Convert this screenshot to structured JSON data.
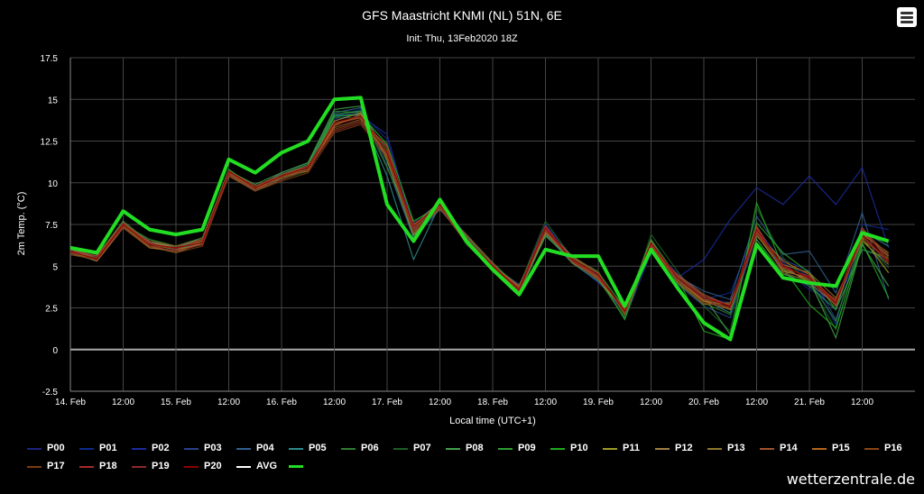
{
  "menu": {
    "icon": "hamburger-menu-icon"
  },
  "credit": "wetterzentrale.de",
  "colors": {
    "avg": "#22dd22",
    "background": "#000000",
    "grid": "#444444",
    "zero_line": "#aaaaaa"
  },
  "chart_data": {
    "type": "line",
    "title": "GFS Maastricht KNMI (NL) 51N, 6E",
    "subtitle": "Init: Thu, 13Feb2020 18Z",
    "xlabel": "Local time (UTC+1)",
    "ylabel": "2m Temp. (°C)",
    "ylim": [
      -2.5,
      17.5
    ],
    "yticks": [
      "17.5",
      "15",
      "12.5",
      "10",
      "7.5",
      "5",
      "2.5",
      "0",
      "-2.5"
    ],
    "xticks": [
      "14. Feb",
      "12:00",
      "15. Feb",
      "12:00",
      "16. Feb",
      "12:00",
      "17. Feb",
      "12:00",
      "18. Feb",
      "12:00",
      "19. Feb",
      "12:00",
      "20. Feb",
      "12:00",
      "21. Feb",
      "12:00"
    ],
    "x": [
      "14. Feb 00:00",
      "14. Feb 06:00",
      "14. Feb 12:00",
      "14. Feb 18:00",
      "15. Feb 00:00",
      "15. Feb 06:00",
      "15. Feb 12:00",
      "15. Feb 18:00",
      "16. Feb 00:00",
      "16. Feb 06:00",
      "16. Feb 12:00",
      "16. Feb 18:00",
      "17. Feb 00:00",
      "17. Feb 06:00",
      "17. Feb 12:00",
      "17. Feb 18:00",
      "18. Feb 00:00",
      "18. Feb 06:00",
      "18. Feb 12:00",
      "18. Feb 18:00",
      "19. Feb 00:00",
      "19. Feb 06:00",
      "19. Feb 12:00",
      "19. Feb 18:00",
      "20. Feb 00:00",
      "20. Feb 06:00",
      "20. Feb 12:00",
      "20. Feb 18:00",
      "21. Feb 00:00",
      "21. Feb 06:00",
      "21. Feb 12:00",
      "21. Feb 18:00"
    ],
    "grid": true,
    "legend_position": "bottom",
    "avg": [
      6.1,
      5.8,
      8.3,
      7.2,
      6.9,
      7.2,
      11.4,
      10.6,
      11.8,
      12.5,
      15.0,
      15.1,
      8.7,
      6.5,
      9.0,
      6.5,
      4.8,
      3.3,
      6.0,
      5.6,
      5.6,
      2.6,
      6.0,
      3.7,
      1.6,
      0.6,
      6.3,
      4.3,
      4.0,
      3.8,
      7.0,
      6.5
    ],
    "series": [
      {
        "name": "P00",
        "color": "#1a237e",
        "values": [
          5.8,
          5.5,
          7.5,
          6.3,
          6.0,
          6.4,
          10.5,
          9.6,
          10.3,
          10.9,
          13.8,
          14.2,
          12.6,
          7.5,
          8.6,
          6.8,
          5.0,
          3.6,
          7.2,
          5.5,
          4.4,
          2.1,
          6.0,
          4.6,
          3.1,
          2.8,
          7.0,
          4.8,
          3.6,
          2.9,
          6.0,
          5.4
        ]
      },
      {
        "name": "P01",
        "color": "#0d2a8a",
        "values": [
          5.9,
          5.6,
          7.6,
          6.4,
          6.1,
          6.6,
          10.7,
          9.8,
          10.5,
          11.1,
          14.0,
          14.4,
          11.5,
          6.9,
          8.5,
          6.5,
          5.1,
          3.4,
          7.0,
          5.3,
          4.0,
          2.6,
          6.3,
          4.1,
          3.0,
          3.4,
          7.3,
          5.2,
          4.4,
          1.5,
          7.5,
          7.2
        ]
      },
      {
        "name": "P02",
        "color": "#1c2a9e",
        "values": [
          6.0,
          5.5,
          7.4,
          6.2,
          5.9,
          6.5,
          10.6,
          9.7,
          10.4,
          11.0,
          14.1,
          14.0,
          12.9,
          7.2,
          8.7,
          6.9,
          4.9,
          3.7,
          7.5,
          5.6,
          4.6,
          1.8,
          5.8,
          4.3,
          5.4,
          7.8,
          9.7,
          8.7,
          10.4,
          8.7,
          10.9,
          6.1
        ]
      },
      {
        "name": "P03",
        "color": "#27408b",
        "values": [
          5.7,
          5.4,
          7.5,
          6.4,
          6.0,
          6.3,
          10.5,
          9.7,
          10.2,
          10.8,
          13.9,
          14.3,
          11.8,
          7.6,
          8.8,
          6.4,
          5.2,
          3.5,
          7.4,
          5.4,
          4.3,
          2.4,
          6.6,
          3.9,
          2.6,
          1.9,
          6.9,
          5.4,
          4.7,
          1.8,
          6.6,
          4.9
        ]
      },
      {
        "name": "P04",
        "color": "#2f5f8f",
        "values": [
          5.8,
          5.3,
          7.3,
          6.2,
          5.9,
          6.5,
          10.8,
          9.6,
          10.6,
          11.2,
          14.2,
          14.5,
          11.0,
          6.7,
          8.4,
          6.6,
          5.0,
          3.9,
          7.1,
          5.5,
          4.5,
          2.3,
          6.1,
          4.4,
          3.5,
          3.0,
          8.0,
          5.7,
          5.9,
          3.4,
          8.2,
          3.0
        ]
      },
      {
        "name": "P05",
        "color": "#2e8b8b",
        "values": [
          6.0,
          5.6,
          7.5,
          6.5,
          6.1,
          6.6,
          10.4,
          9.5,
          10.3,
          10.9,
          14.0,
          14.1,
          10.4,
          5.4,
          8.7,
          6.4,
          5.0,
          3.6,
          6.9,
          5.2,
          4.1,
          2.5,
          6.4,
          4.2,
          3.0,
          2.2,
          7.3,
          4.6,
          3.8,
          2.4,
          7.1,
          6.2
        ]
      },
      {
        "name": "P06",
        "color": "#2e7d32",
        "values": [
          5.9,
          5.5,
          7.6,
          6.3,
          6.1,
          6.4,
          10.6,
          9.8,
          10.4,
          11.0,
          14.3,
          14.2,
          10.9,
          7.4,
          8.5,
          6.7,
          5.1,
          3.5,
          7.3,
          5.3,
          4.2,
          1.9,
          6.2,
          4.0,
          2.8,
          2.1,
          7.1,
          4.9,
          4.1,
          1.7,
          6.8,
          5.3
        ]
      },
      {
        "name": "P07",
        "color": "#1b5e20",
        "values": [
          5.8,
          5.4,
          7.4,
          6.1,
          5.9,
          6.3,
          10.5,
          9.6,
          10.2,
          10.7,
          13.9,
          13.9,
          12.0,
          7.1,
          8.9,
          6.3,
          4.8,
          3.8,
          7.7,
          5.5,
          4.7,
          2.0,
          6.9,
          4.7,
          2.6,
          1.1,
          8.5,
          5.5,
          4.0,
          1.2,
          6.6,
          4.9
        ]
      },
      {
        "name": "P08",
        "color": "#43a047",
        "values": [
          5.9,
          5.6,
          7.7,
          6.4,
          6.2,
          6.7,
          10.7,
          9.9,
          10.6,
          11.2,
          14.4,
          14.6,
          11.3,
          6.8,
          8.6,
          6.6,
          5.1,
          3.4,
          6.8,
          5.4,
          4.3,
          2.2,
          6.0,
          4.4,
          3.2,
          0.9,
          6.6,
          4.5,
          4.2,
          0.7,
          6.3,
          3.8
        ]
      },
      {
        "name": "P09",
        "color": "#2e9d2e",
        "values": [
          6.1,
          5.7,
          7.5,
          6.6,
          6.2,
          6.6,
          10.8,
          9.7,
          10.5,
          11.1,
          14.1,
          14.3,
          11.7,
          7.3,
          8.8,
          6.8,
          5.2,
          3.7,
          7.2,
          5.6,
          4.6,
          2.5,
          6.6,
          4.3,
          3.1,
          2.4,
          7.6,
          5.8,
          4.6,
          2.4,
          6.0,
          5.5
        ]
      },
      {
        "name": "P10",
        "color": "#1faa1f",
        "values": [
          5.8,
          5.5,
          7.3,
          6.3,
          6.0,
          6.5,
          10.6,
          9.8,
          10.3,
          10.8,
          14.0,
          14.1,
          12.3,
          7.7,
          8.6,
          6.5,
          4.9,
          3.6,
          7.3,
          5.3,
          4.4,
          1.8,
          6.2,
          4.3,
          1.1,
          0.6,
          8.8,
          4.9,
          2.7,
          1.3,
          6.4,
          3.1
        ]
      },
      {
        "name": "P11",
        "color": "#9e9d24",
        "values": [
          5.7,
          5.4,
          7.4,
          6.2,
          5.8,
          6.4,
          10.4,
          9.6,
          10.4,
          10.9,
          13.6,
          13.9,
          11.6,
          7.0,
          8.7,
          6.6,
          5.0,
          3.5,
          7.0,
          5.4,
          4.2,
          2.3,
          6.1,
          4.1,
          2.9,
          2.7,
          6.9,
          4.7,
          4.3,
          2.9,
          6.7,
          4.6
        ]
      },
      {
        "name": "P12",
        "color": "#a08040",
        "values": [
          5.9,
          5.5,
          7.5,
          6.4,
          6.1,
          6.5,
          10.5,
          9.7,
          10.3,
          10.9,
          13.7,
          14.2,
          11.4,
          6.9,
          8.5,
          6.4,
          5.1,
          3.6,
          7.1,
          5.5,
          4.5,
          2.2,
          6.3,
          4.2,
          3.0,
          2.5,
          7.2,
          5.0,
          4.0,
          2.7,
          7.0,
          5.6
        ]
      },
      {
        "name": "P13",
        "color": "#8d7a2e",
        "values": [
          5.8,
          5.4,
          7.6,
          6.3,
          6.0,
          6.3,
          10.6,
          9.5,
          10.2,
          10.8,
          13.5,
          14.0,
          11.8,
          7.4,
          8.9,
          6.7,
          4.9,
          3.7,
          7.4,
          5.2,
          4.3,
          2.4,
          6.5,
          4.0,
          2.7,
          2.8,
          6.8,
          5.1,
          4.6,
          3.1,
          6.5,
          5.1
        ]
      },
      {
        "name": "P14",
        "color": "#a0522d",
        "values": [
          6.0,
          5.6,
          7.4,
          6.5,
          6.2,
          6.6,
          10.7,
          9.8,
          10.5,
          11.0,
          13.3,
          13.8,
          12.2,
          7.1,
          8.4,
          6.9,
          5.2,
          3.4,
          7.2,
          5.6,
          4.6,
          2.1,
          6.0,
          4.5,
          3.3,
          2.6,
          7.4,
          4.8,
          4.2,
          2.8,
          7.3,
          5.3
        ]
      },
      {
        "name": "P15",
        "color": "#b5651d",
        "values": [
          5.9,
          5.3,
          7.3,
          6.1,
          5.9,
          6.4,
          10.5,
          9.6,
          10.4,
          10.7,
          13.4,
          14.1,
          11.6,
          7.5,
          8.6,
          6.5,
          5.0,
          3.8,
          7.0,
          5.4,
          4.4,
          2.3,
          6.2,
          4.2,
          2.9,
          2.4,
          7.0,
          5.3,
          4.5,
          2.6,
          6.9,
          5.8
        ]
      },
      {
        "name": "P16",
        "color": "#8b4513",
        "values": [
          5.8,
          5.5,
          7.5,
          6.2,
          6.1,
          6.5,
          10.6,
          9.7,
          10.3,
          10.9,
          13.2,
          13.7,
          11.9,
          7.2,
          8.7,
          6.6,
          5.1,
          3.5,
          7.3,
          5.3,
          4.2,
          2.5,
          6.4,
          4.3,
          3.1,
          2.7,
          7.1,
          4.6,
          4.1,
          3.0,
          6.6,
          5.4
        ]
      },
      {
        "name": "P17",
        "color": "#7a3a10",
        "values": [
          5.7,
          5.4,
          7.4,
          6.3,
          5.8,
          6.2,
          10.4,
          9.5,
          10.1,
          10.6,
          13.0,
          13.5,
          11.5,
          7.0,
          8.5,
          6.4,
          4.9,
          3.6,
          7.1,
          5.5,
          4.5,
          2.2,
          6.1,
          4.1,
          2.8,
          2.5,
          6.9,
          5.0,
          4.3,
          2.8,
          7.2,
          5.7
        ]
      },
      {
        "name": "P18",
        "color": "#a52a2a",
        "values": [
          5.9,
          5.6,
          7.6,
          6.4,
          6.0,
          6.6,
          10.6,
          9.8,
          10.4,
          11.0,
          13.5,
          13.9,
          12.1,
          7.3,
          8.8,
          6.7,
          5.0,
          3.7,
          7.4,
          5.4,
          4.3,
          2.4,
          6.3,
          4.4,
          3.2,
          2.6,
          7.3,
          4.9,
          4.4,
          2.9,
          6.8,
          5.2
        ]
      },
      {
        "name": "P19",
        "color": "#8b2a2a",
        "values": [
          5.8,
          5.5,
          7.3,
          6.2,
          5.9,
          6.3,
          10.5,
          9.6,
          10.2,
          10.8,
          13.1,
          13.6,
          11.7,
          7.1,
          8.6,
          6.5,
          5.1,
          3.5,
          7.2,
          5.3,
          4.4,
          2.3,
          6.2,
          4.2,
          3.0,
          2.5,
          7.0,
          5.1,
          4.2,
          2.7,
          7.1,
          5.5
        ]
      },
      {
        "name": "P20",
        "color": "#8b0000",
        "values": [
          5.9,
          5.4,
          7.5,
          6.3,
          6.1,
          6.4,
          10.7,
          9.7,
          10.4,
          10.9,
          13.6,
          14.0,
          11.8,
          7.4,
          8.7,
          6.6,
          5.0,
          3.6,
          7.3,
          5.4,
          4.5,
          2.3,
          6.4,
          4.3,
          3.1,
          2.6,
          7.2,
          5.0,
          4.3,
          2.8,
          6.9,
          5.3
        ]
      }
    ],
    "legend": [
      {
        "label": "P00",
        "color": "#1a237e"
      },
      {
        "label": "P01",
        "color": "#0d2a8a"
      },
      {
        "label": "P02",
        "color": "#1c2a9e"
      },
      {
        "label": "P03",
        "color": "#27408b"
      },
      {
        "label": "P04",
        "color": "#2f5f8f"
      },
      {
        "label": "P05",
        "color": "#2e8b8b"
      },
      {
        "label": "P06",
        "color": "#2e7d32"
      },
      {
        "label": "P07",
        "color": "#1b5e20"
      },
      {
        "label": "P08",
        "color": "#43a047"
      },
      {
        "label": "P09",
        "color": "#2e9d2e"
      },
      {
        "label": "P10",
        "color": "#1faa1f"
      },
      {
        "label": "P11",
        "color": "#9e9d24"
      },
      {
        "label": "P12",
        "color": "#a08040"
      },
      {
        "label": "P13",
        "color": "#8d7a2e"
      },
      {
        "label": "P14",
        "color": "#a0522d"
      },
      {
        "label": "P15",
        "color": "#b5651d"
      },
      {
        "label": "P16",
        "color": "#8b4513"
      },
      {
        "label": "P17",
        "color": "#7a3a10"
      },
      {
        "label": "P18",
        "color": "#a52a2a"
      },
      {
        "label": "P19",
        "color": "#8b2a2a"
      },
      {
        "label": "P20",
        "color": "#8b0000"
      },
      {
        "label": "AVG",
        "color": "#ffffff"
      },
      {
        "label": "",
        "color": "#22dd22"
      }
    ]
  }
}
